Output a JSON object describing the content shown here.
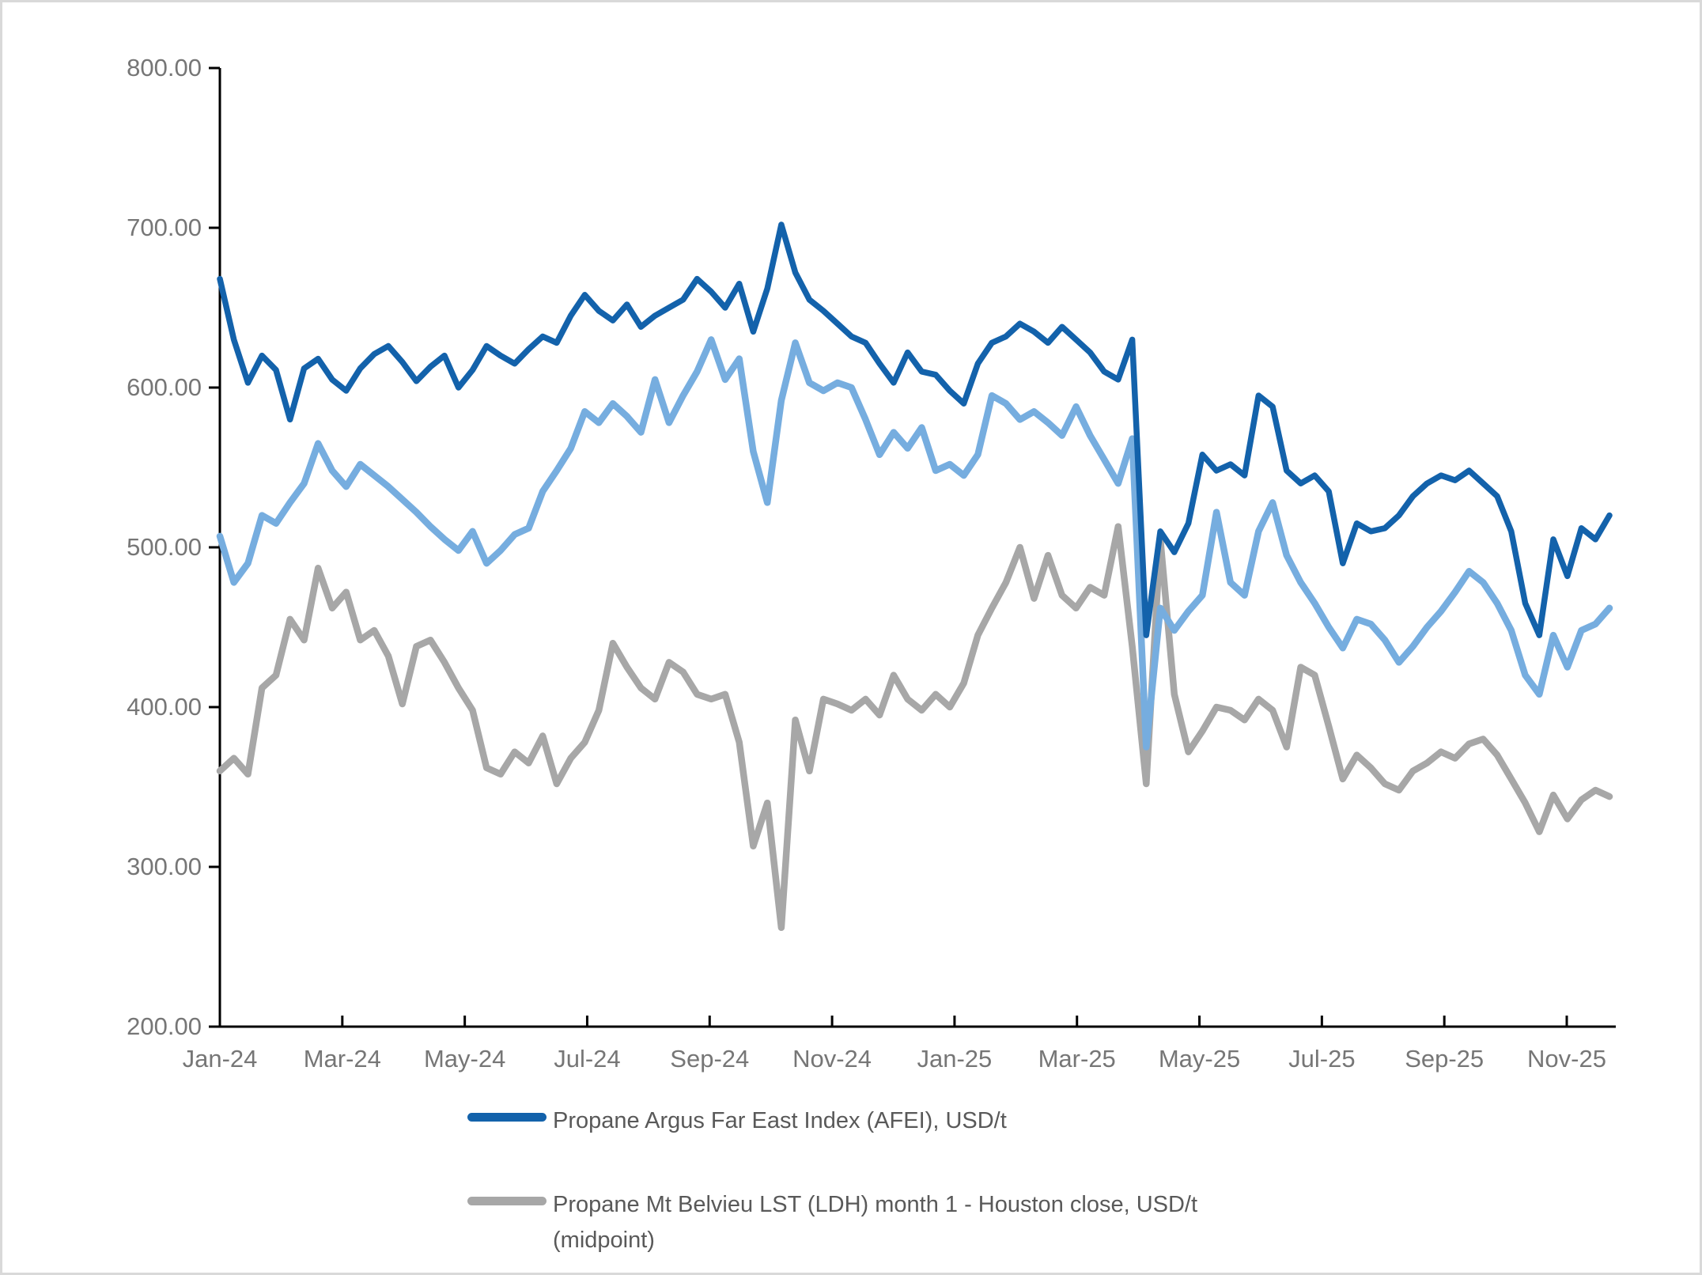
{
  "chart_data": {
    "type": "line",
    "title": "",
    "ylabel": "",
    "xlabel": "",
    "ylim": [
      200,
      800
    ],
    "grid": false,
    "y_tick_labels": [
      "800.00",
      "700.00",
      "600.00",
      "500.00",
      "400.00",
      "300.00",
      "200.00"
    ],
    "y_tick_values": [
      800,
      700,
      600,
      500,
      400,
      300,
      200
    ],
    "x_tick_labels": [
      "Jan-24",
      "Mar-24",
      "May-24",
      "Jul-24",
      "Sep-24",
      "Nov-24",
      "Jan-25",
      "Mar-25",
      "May-25",
      "Jul-25",
      "Sep-25",
      "Nov-25"
    ],
    "x_sampling": "weekly points from Jan-2024 to late Nov-2025",
    "series": [
      {
        "name": "Propane Argus Far East Index (AFEI), USD/t",
        "color": "#1362AB",
        "legend_visible": true,
        "values": [
          668,
          630,
          603,
          620,
          611,
          580,
          612,
          618,
          605,
          598,
          612,
          621,
          626,
          616,
          604,
          613,
          620,
          600,
          611,
          626,
          620,
          615,
          624,
          632,
          628,
          645,
          658,
          648,
          642,
          652,
          638,
          645,
          650,
          655,
          668,
          660,
          650,
          665,
          635,
          662,
          702,
          672,
          655,
          648,
          640,
          632,
          628,
          615,
          603,
          622,
          610,
          608,
          598,
          590,
          615,
          628,
          632,
          640,
          635,
          628,
          638,
          630,
          622,
          610,
          605,
          630,
          445,
          510,
          497,
          515,
          558,
          548,
          552,
          545,
          595,
          588,
          548,
          540,
          545,
          535,
          490,
          515,
          510,
          512,
          520,
          532,
          540,
          545,
          542,
          548,
          540,
          532,
          510,
          465,
          445,
          505,
          482,
          512,
          505,
          520
        ]
      },
      {
        "name": "",
        "color": "#76ADDF",
        "legend_visible": false,
        "values": [
          507,
          478,
          490,
          520,
          515,
          528,
          540,
          565,
          548,
          538,
          552,
          545,
          538,
          530,
          522,
          513,
          505,
          498,
          510,
          490,
          498,
          508,
          512,
          535,
          548,
          562,
          585,
          578,
          590,
          582,
          572,
          605,
          578,
          595,
          610,
          630,
          605,
          618,
          560,
          528,
          592,
          628,
          603,
          598,
          603,
          600,
          580,
          558,
          572,
          562,
          575,
          548,
          552,
          545,
          558,
          595,
          590,
          580,
          585,
          578,
          570,
          588,
          570,
          555,
          540,
          568,
          375,
          462,
          448,
          460,
          470,
          522,
          478,
          470,
          510,
          528,
          495,
          478,
          465,
          450,
          437,
          455,
          452,
          442,
          428,
          438,
          450,
          460,
          472,
          485,
          478,
          465,
          448,
          420,
          408,
          445,
          425,
          448,
          452,
          462
        ]
      },
      {
        "name": "Propane Mt Belvieu LST (LDH) month 1 - Houston close, USD/t (midpoint)",
        "color": "#A7A7A7",
        "legend_visible": true,
        "values": [
          360,
          368,
          358,
          412,
          420,
          455,
          442,
          487,
          462,
          472,
          442,
          448,
          432,
          402,
          438,
          442,
          428,
          412,
          398,
          362,
          358,
          372,
          365,
          382,
          352,
          368,
          378,
          398,
          440,
          425,
          412,
          405,
          428,
          422,
          408,
          405,
          408,
          378,
          313,
          340,
          262,
          392,
          360,
          405,
          402,
          398,
          405,
          395,
          420,
          405,
          398,
          408,
          400,
          415,
          445,
          462,
          478,
          500,
          468,
          495,
          470,
          462,
          475,
          470,
          513,
          438,
          352,
          505,
          408,
          372,
          385,
          400,
          398,
          392,
          405,
          398,
          375,
          425,
          420,
          388,
          355,
          370,
          362,
          352,
          348,
          360,
          365,
          372,
          368,
          377,
          380,
          370,
          355,
          340,
          322,
          345,
          330,
          342,
          348,
          344
        ]
      }
    ],
    "legend_position": "bottom, left-of-center, stacked vertically"
  },
  "legend": {
    "items": [
      {
        "label": "Propane Argus Far East Index (AFEI), USD/t",
        "color": "#1362AB"
      },
      {
        "label": "Propane Mt Belvieu LST (LDH) month 1 - Houston close, USD/t (midpoint)",
        "color": "#A7A7A7"
      }
    ]
  }
}
